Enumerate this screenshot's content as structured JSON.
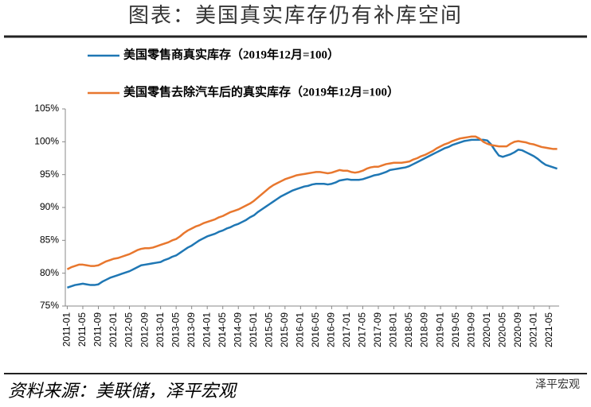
{
  "chart_data": {
    "type": "line",
    "title": "图表：美国真实库存仍有补库空间",
    "source": "资料来源：美联储，泽平宏观",
    "watermark": "泽平宏观",
    "categories": [
      "2011-01",
      null,
      null,
      null,
      "2011-05",
      null,
      null,
      null,
      "2011-09",
      null,
      null,
      null,
      "2012-01",
      null,
      null,
      null,
      "2012-05",
      null,
      null,
      null,
      "2012-09",
      null,
      null,
      null,
      "2013-01",
      null,
      null,
      null,
      "2013-05",
      null,
      null,
      null,
      "2013-09",
      null,
      null,
      null,
      "2014-01",
      null,
      null,
      null,
      "2014-05",
      null,
      null,
      null,
      "2014-09",
      null,
      null,
      null,
      "2015-01",
      null,
      null,
      null,
      "2015-05",
      null,
      null,
      null,
      "2015-09",
      null,
      null,
      null,
      "2016-01",
      null,
      null,
      null,
      "2016-05",
      null,
      null,
      null,
      "2016-09",
      null,
      null,
      null,
      "2017-01",
      null,
      null,
      null,
      "2017-05",
      null,
      null,
      null,
      "2017-09",
      null,
      null,
      null,
      "2018-01",
      null,
      null,
      null,
      "2018-05",
      null,
      null,
      null,
      "2018-09",
      null,
      null,
      null,
      "2019-01",
      null,
      null,
      null,
      "2019-05",
      null,
      null,
      null,
      "2019-09",
      null,
      null,
      null,
      "2020-01",
      null,
      null,
      null,
      "2020-05",
      null,
      null,
      null,
      "2020-09",
      null,
      null,
      null,
      "2021-01",
      null,
      null,
      null,
      "2021-05",
      null,
      null
    ],
    "series": [
      {
        "name": "美国零售商真实库存（2019年12月=100）",
        "color": "#1f77b4",
        "values": [
          77.8,
          78.0,
          78.2,
          78.3,
          78.4,
          78.3,
          78.2,
          78.2,
          78.3,
          78.7,
          79.0,
          79.3,
          79.5,
          79.7,
          79.9,
          80.1,
          80.3,
          80.6,
          80.9,
          81.2,
          81.3,
          81.4,
          81.5,
          81.6,
          81.7,
          82.0,
          82.2,
          82.5,
          82.7,
          83.1,
          83.5,
          83.9,
          84.2,
          84.6,
          85.0,
          85.3,
          85.6,
          85.8,
          86.0,
          86.3,
          86.5,
          86.8,
          87.0,
          87.3,
          87.5,
          87.8,
          88.1,
          88.5,
          88.8,
          89.3,
          89.7,
          90.1,
          90.5,
          90.9,
          91.3,
          91.7,
          92.0,
          92.3,
          92.6,
          92.8,
          93.0,
          93.2,
          93.3,
          93.5,
          93.6,
          93.6,
          93.6,
          93.5,
          93.6,
          93.8,
          94.1,
          94.2,
          94.3,
          94.2,
          94.2,
          94.2,
          94.3,
          94.5,
          94.7,
          94.9,
          95.0,
          95.2,
          95.4,
          95.7,
          95.8,
          95.9,
          96.0,
          96.1,
          96.3,
          96.6,
          96.9,
          97.2,
          97.5,
          97.8,
          98.1,
          98.4,
          98.7,
          99.0,
          99.2,
          99.5,
          99.7,
          99.9,
          100.1,
          100.2,
          100.3,
          100.3,
          100.3,
          100.3,
          100.2,
          99.6,
          98.7,
          97.9,
          97.7,
          97.9,
          98.1,
          98.4,
          98.8,
          98.7,
          98.4,
          98.1,
          97.8,
          97.4,
          96.9,
          96.5,
          96.3,
          96.1,
          95.9
        ]
      },
      {
        "name": "美国零售去除汽车后的真实库存（2019年12月=100）",
        "color": "#e8772e",
        "values": [
          80.6,
          80.9,
          81.1,
          81.3,
          81.3,
          81.2,
          81.1,
          81.1,
          81.2,
          81.5,
          81.8,
          82.0,
          82.2,
          82.3,
          82.5,
          82.7,
          82.9,
          83.2,
          83.5,
          83.7,
          83.8,
          83.8,
          83.9,
          84.1,
          84.3,
          84.5,
          84.7,
          85.0,
          85.2,
          85.6,
          86.1,
          86.5,
          86.8,
          87.1,
          87.3,
          87.6,
          87.8,
          88.0,
          88.2,
          88.5,
          88.7,
          89.0,
          89.3,
          89.5,
          89.7,
          90.0,
          90.3,
          90.6,
          91.0,
          91.5,
          92.0,
          92.5,
          93.0,
          93.4,
          93.7,
          94.0,
          94.3,
          94.5,
          94.7,
          94.9,
          95.0,
          95.1,
          95.2,
          95.3,
          95.4,
          95.4,
          95.3,
          95.2,
          95.3,
          95.5,
          95.7,
          95.6,
          95.6,
          95.4,
          95.3,
          95.4,
          95.6,
          95.9,
          96.1,
          96.2,
          96.2,
          96.4,
          96.6,
          96.7,
          96.8,
          96.8,
          96.8,
          96.9,
          97.0,
          97.3,
          97.5,
          97.8,
          98.0,
          98.3,
          98.6,
          99.0,
          99.3,
          99.6,
          99.8,
          100.1,
          100.3,
          100.5,
          100.6,
          100.7,
          100.8,
          100.8,
          100.5,
          100.0,
          99.7,
          99.5,
          99.4,
          99.3,
          99.3,
          99.3,
          99.7,
          100.0,
          100.1,
          100.0,
          99.9,
          99.7,
          99.6,
          99.4,
          99.2,
          99.1,
          99.0,
          98.9,
          98.9
        ]
      }
    ],
    "ylim": [
      75,
      105
    ],
    "yticks": [
      {
        "value": 75,
        "label": "75%"
      },
      {
        "value": 80,
        "label": "80%"
      },
      {
        "value": 85,
        "label": "85%"
      },
      {
        "value": 90,
        "label": "90%"
      },
      {
        "value": 95,
        "label": "95%"
      },
      {
        "value": 100,
        "label": "100%"
      },
      {
        "value": 105,
        "label": "105%"
      }
    ],
    "grid": false
  }
}
